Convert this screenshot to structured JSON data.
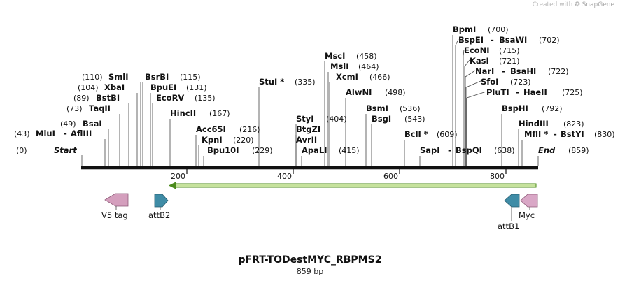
{
  "credit": {
    "prefix": "Created with",
    "brand": "SnapGene"
  },
  "plasmid": {
    "name": "pFRT-TODestMYC_RBPMS2",
    "length_label": "859 bp"
  },
  "ruler": {
    "ticks": [
      "200",
      "400",
      "600",
      "800"
    ]
  },
  "ends": {
    "start": {
      "pos": "(0)",
      "label": "Start"
    },
    "end": {
      "label": "End",
      "pos": "(859)"
    }
  },
  "sites": [
    {
      "pos": "(43)",
      "name": "MluI",
      "sep": "-",
      "name2": "AflIII"
    },
    {
      "pos": "(49)",
      "name": "BsaI"
    },
    {
      "pos": "(73)",
      "name": "TaqII"
    },
    {
      "pos": "(89)",
      "name": "BstBI"
    },
    {
      "pos": "(104)",
      "name": "XbaI"
    },
    {
      "pos": "(110)",
      "name": "SmlI"
    },
    {
      "name": "BsrBI",
      "pos": "(115)"
    },
    {
      "name": "BpuEI",
      "pos": "(131)"
    },
    {
      "name": "EcoRV",
      "pos": "(135)"
    },
    {
      "name": "HincII",
      "pos": "(167)"
    },
    {
      "name": "Acc65I",
      "pos": "(216)"
    },
    {
      "name": "KpnI",
      "pos": "(220)"
    },
    {
      "name": "Bpu10I",
      "pos": "(229)"
    },
    {
      "name": "StuI *",
      "pos": "(335)"
    },
    {
      "name": "StyI",
      "pos": "(404)"
    },
    {
      "name": "BtgZI"
    },
    {
      "name": "AvrII"
    },
    {
      "name": "ApaLI",
      "pos": "(415)"
    },
    {
      "name": "MscI",
      "pos": "(458)"
    },
    {
      "name": "MslI",
      "pos": "(464)"
    },
    {
      "name": "XcmI",
      "pos": "(466)"
    },
    {
      "name": "AlwNI",
      "pos": "(498)"
    },
    {
      "name": "BsmI",
      "pos": "(536)"
    },
    {
      "name": "BsgI",
      "pos": "(543)"
    },
    {
      "name": "BclI *",
      "pos": "(609)"
    },
    {
      "name": "SapI",
      "sep": "-",
      "name2": "BspQI",
      "pos": "(638)"
    },
    {
      "name": "BpmI",
      "pos": "(700)"
    },
    {
      "name": "BspEI",
      "sep": "-",
      "name2": "BsaWI",
      "pos": "(702)"
    },
    {
      "name": "EcoNI",
      "pos": "(715)"
    },
    {
      "name": "KasI",
      "pos": "(721)"
    },
    {
      "name": "NarI",
      "sep": "-",
      "name2": "BsaHI",
      "pos": "(722)"
    },
    {
      "name": "SfoI",
      "pos": "(723)"
    },
    {
      "name": "PluTI",
      "sep": "-",
      "name2": "HaeII",
      "pos": "(725)"
    },
    {
      "name": "BspHI",
      "pos": "(792)"
    },
    {
      "name": "HindIII",
      "pos": "(823)"
    },
    {
      "name": "MflI *",
      "sep": "-",
      "name2": "BstYI",
      "pos": "(830)"
    }
  ],
  "features": {
    "v5": "V5 tag",
    "attb2": "attB2",
    "attb1": "attB1",
    "myc": "Myc"
  },
  "colors": {
    "backbone": "#111111",
    "orf_fill": "#c6e29c",
    "orf_stroke": "#4a8a1a",
    "v5": "#d49fbd",
    "attb": "#3f8ca6",
    "myc": "#d9a7c6"
  }
}
